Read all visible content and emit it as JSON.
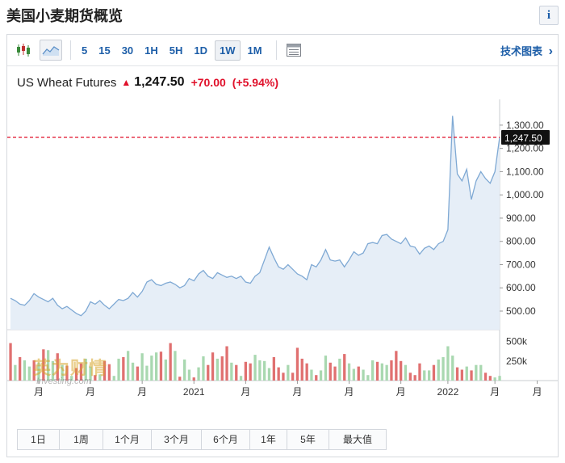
{
  "page": {
    "title": "美国小麦期货概览",
    "info_label": "i"
  },
  "toolbar": {
    "intervals": [
      "5",
      "15",
      "30",
      "1H",
      "5H",
      "1D",
      "1W",
      "1M"
    ],
    "active_interval": "1W",
    "tech_chart_label": "技术图表",
    "tech_chart_arrow": "›",
    "icons": [
      "candlestick-icon",
      "area-chart-icon",
      "table-icon"
    ]
  },
  "quote": {
    "name": "US Wheat Futures",
    "arrow": "▲",
    "price": "1,247.50",
    "change": "+70.00",
    "change_pct": "(+5.94%)"
  },
  "colors": {
    "up": "#e0102a",
    "line": "#7fa9d4",
    "area": "#e6eef7",
    "volume_up": "#a9d8b0",
    "volume_down": "#e07070",
    "accent": "#1d5ea8"
  },
  "chart_data": {
    "type": "area",
    "price_series": {
      "values": [
        555,
        545,
        530,
        525,
        545,
        575,
        560,
        550,
        540,
        555,
        525,
        510,
        520,
        505,
        490,
        480,
        500,
        540,
        530,
        545,
        525,
        510,
        530,
        550,
        545,
        555,
        580,
        560,
        585,
        625,
        635,
        615,
        610,
        620,
        625,
        615,
        600,
        610,
        640,
        630,
        660,
        675,
        650,
        640,
        665,
        655,
        645,
        650,
        640,
        650,
        625,
        620,
        650,
        665,
        720,
        775,
        730,
        690,
        680,
        700,
        680,
        660,
        650,
        635,
        700,
        690,
        720,
        765,
        720,
        715,
        720,
        690,
        720,
        755,
        740,
        750,
        790,
        795,
        790,
        825,
        830,
        810,
        800,
        790,
        815,
        780,
        775,
        745,
        770,
        780,
        765,
        790,
        800,
        850,
        1340,
        1090,
        1060,
        1110,
        980,
        1060,
        1100,
        1070,
        1050,
        1100,
        1247.5
      ]
    },
    "current_value": 1247.5,
    "current_label": "1,247.50",
    "y_ticks": [
      "500.00",
      "600.00",
      "700.00",
      "800.00",
      "900.00",
      "1,000.00",
      "1,100.00",
      "1,200.00",
      "1,300.00"
    ],
    "y_tick_values": [
      500,
      600,
      700,
      800,
      900,
      1000,
      1100,
      1200,
      1300
    ],
    "ylim": [
      420,
      1390
    ],
    "volume_ticks": [
      "250k",
      "500k"
    ],
    "volume_tick_values": [
      250,
      500
    ],
    "volume_max": 600,
    "volume_series": {
      "values": [
        480,
        200,
        300,
        260,
        180,
        260,
        230,
        400,
        390,
        250,
        350,
        200,
        190,
        60,
        160,
        220,
        280,
        180,
        70,
        80,
        250,
        210,
        60,
        280,
        300,
        380,
        230,
        180,
        350,
        190,
        320,
        360,
        370,
        270,
        480,
        380,
        50,
        270,
        140,
        40,
        170,
        310,
        200,
        360,
        280,
        310,
        440,
        230,
        200,
        60,
        240,
        220,
        330,
        260,
        250,
        160,
        300,
        170,
        100,
        200,
        100,
        420,
        280,
        220,
        140,
        70,
        130,
        320,
        230,
        180,
        280,
        340,
        220,
        150,
        180,
        140,
        70,
        260,
        240,
        220,
        200,
        260,
        380,
        250,
        200,
        100,
        70,
        220,
        130,
        130,
        200,
        270,
        300,
        440,
        320,
        170,
        140,
        180,
        130,
        200,
        200,
        100,
        60,
        40,
        60
      ],
      "up": [
        0,
        1,
        0,
        1,
        1,
        0,
        1,
        0,
        1,
        1,
        0,
        1,
        0,
        1,
        0,
        0,
        1,
        1,
        0,
        1,
        0,
        0,
        1,
        1,
        0,
        1,
        1,
        0,
        1,
        1,
        1,
        1,
        0,
        1,
        0,
        1,
        0,
        1,
        1,
        0,
        1,
        1,
        0,
        0,
        1,
        0,
        0,
        1,
        0,
        1,
        0,
        0,
        1,
        1,
        1,
        1,
        0,
        0,
        0,
        1,
        0,
        0,
        0,
        0,
        1,
        0,
        1,
        1,
        0,
        0,
        1,
        0,
        1,
        1,
        0,
        1,
        1,
        1,
        0,
        1,
        1,
        0,
        0,
        0,
        1,
        0,
        0,
        0,
        1,
        1,
        0,
        1,
        1,
        1,
        1,
        0,
        0,
        1,
        0,
        1,
        1,
        0,
        0,
        1,
        1
      ]
    },
    "x_labels": [
      "月",
      "月",
      "月",
      "2021",
      "月",
      "月",
      "月",
      "月",
      "2022",
      "月",
      "月"
    ],
    "x_label_index": [
      6,
      17,
      28,
      39,
      50,
      61,
      72,
      83,
      93,
      103,
      112
    ]
  },
  "range_buttons": [
    "1日",
    "1周",
    "1个月",
    "3个月",
    "6个月",
    "1年",
    "5年",
    "最大值"
  ],
  "watermark": {
    "cn": "英为财情",
    "en": "Investing.com"
  }
}
